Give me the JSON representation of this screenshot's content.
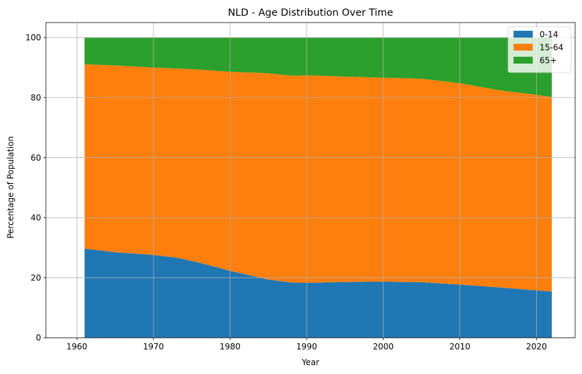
{
  "chart_data": {
    "type": "area",
    "stacked": true,
    "title": "NLD - Age Distribution Over Time",
    "xlabel": "Year",
    "ylabel": "Percentage of Population",
    "xlim": [
      1955.95,
      2025.05
    ],
    "ylim": [
      0,
      105
    ],
    "xticks": [
      1960,
      1970,
      1980,
      1990,
      2000,
      2010,
      2020
    ],
    "yticks": [
      0,
      20,
      40,
      60,
      80,
      100
    ],
    "grid": true,
    "legend_position": "top-right",
    "x": [
      1961,
      1965,
      1970,
      1973,
      1976,
      1980,
      1985,
      1988,
      1990,
      1995,
      2000,
      2005,
      2010,
      2015,
      2020,
      2022
    ],
    "series": [
      {
        "name": "0-14",
        "color": "#1f77b4",
        "values": [
          29.7,
          28.5,
          27.6,
          26.7,
          25.0,
          22.3,
          19.4,
          18.4,
          18.3,
          18.6,
          18.7,
          18.5,
          17.7,
          16.8,
          15.8,
          15.4
        ]
      },
      {
        "name": "15-64",
        "color": "#ff7f0e",
        "values": [
          61.4,
          62.2,
          62.4,
          63.0,
          64.3,
          66.3,
          68.7,
          68.9,
          69.1,
          68.4,
          67.9,
          67.8,
          67.1,
          65.7,
          65.1,
          64.8
        ]
      },
      {
        "name": "65+",
        "color": "#2ca02c",
        "values": [
          8.9,
          9.3,
          10.0,
          10.3,
          10.7,
          11.4,
          11.9,
          12.7,
          12.6,
          13.0,
          13.4,
          13.7,
          15.2,
          17.5,
          19.1,
          19.8
        ]
      }
    ]
  }
}
